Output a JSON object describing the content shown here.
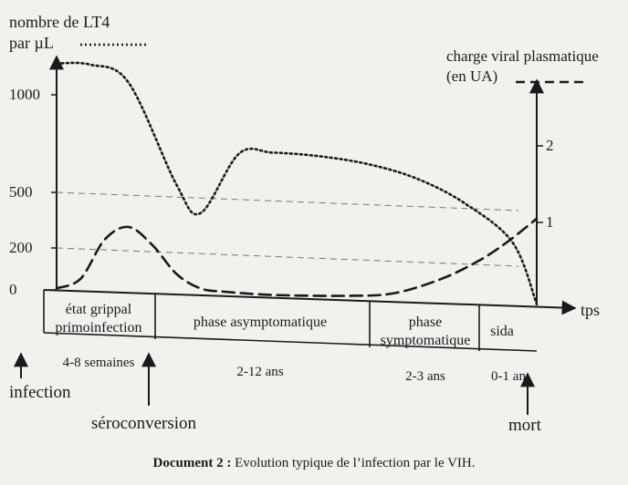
{
  "chart_data": {
    "type": "line",
    "left_axis": {
      "label_line1": "nombre de LT4",
      "label_line2": "par µL",
      "ticks": [
        0,
        200,
        500,
        1000
      ],
      "ylim": [
        0,
        1150
      ]
    },
    "right_axis": {
      "label_line1": "charge viral plasmatique",
      "label_line2": "(en UA)",
      "ticks": [
        1,
        2
      ],
      "ylim": [
        0,
        2.5
      ]
    },
    "x_axis_label": "tps",
    "series": [
      {
        "style": "dotted",
        "axis": "left",
        "x": [
          0,
          0.07,
          0.15,
          0.25,
          0.3,
          0.38,
          0.45,
          0.55,
          0.65,
          0.75,
          0.85,
          0.95,
          1.0
        ],
        "y": [
          1080,
          1080,
          1000,
          520,
          390,
          680,
          690,
          680,
          650,
          590,
          480,
          300,
          10
        ]
      },
      {
        "style": "dashed",
        "axis": "right",
        "x": [
          0,
          0.05,
          0.1,
          0.15,
          0.2,
          0.25,
          0.3,
          0.35,
          0.45,
          0.6,
          0.7,
          0.8,
          0.88,
          0.94,
          1.0
        ],
        "y": [
          0.02,
          0.15,
          0.65,
          0.82,
          0.6,
          0.25,
          0.08,
          0.05,
          0.03,
          0.05,
          0.1,
          0.3,
          0.55,
          0.8,
          1.1
        ]
      }
    ],
    "phases": [
      {
        "line1": "état grippal",
        "line2": "primoinfection",
        "duration": "4-8 semaines"
      },
      {
        "line1": "phase asymptomatique",
        "line2": "",
        "duration": "2-12 ans"
      },
      {
        "line1": "phase",
        "line2": "symptomatique",
        "duration": "2-3 ans"
      },
      {
        "line1": "sida",
        "line2": "",
        "duration": "0-1 an"
      }
    ],
    "events": {
      "infection": "infection",
      "seroconversion": "séroconversion",
      "death": "mort"
    }
  },
  "caption": {
    "label": "Document 2 :",
    "text": " Evolution typique de l’infection par le VIH."
  }
}
